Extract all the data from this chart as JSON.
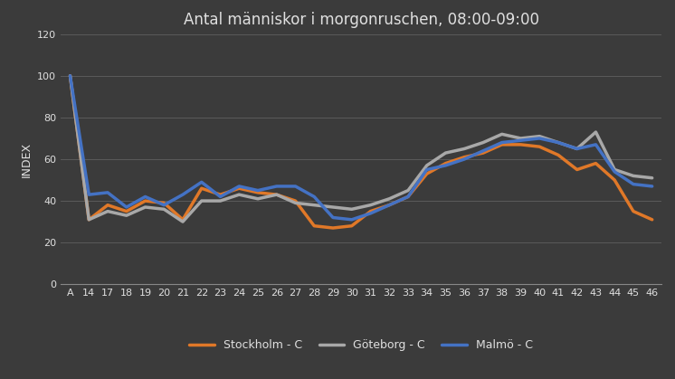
{
  "title": "Antal människor i morgonruschen, 08:00-09:00",
  "ylabel": "INDEX",
  "background_color": "#3b3b3b",
  "plot_bg_color": "#3b3b3b",
  "grid_color": "#606060",
  "text_color": "#e0e0e0",
  "categories": [
    "A",
    "14",
    "17",
    "18",
    "19",
    "20",
    "21",
    "22",
    "23",
    "24",
    "25",
    "26",
    "27",
    "28",
    "29",
    "30",
    "31",
    "32",
    "33",
    "34",
    "35",
    "36",
    "37",
    "38",
    "39",
    "40",
    "41",
    "42",
    "43",
    "44",
    "45",
    "46"
  ],
  "stockholm": [
    100,
    31,
    38,
    35,
    40,
    39,
    31,
    46,
    43,
    46,
    44,
    43,
    40,
    28,
    27,
    28,
    35,
    38,
    42,
    53,
    58,
    61,
    63,
    67,
    67,
    66,
    62,
    55,
    58,
    50,
    35,
    31
  ],
  "goteborg": [
    100,
    31,
    35,
    33,
    37,
    36,
    30,
    40,
    40,
    43,
    41,
    43,
    39,
    38,
    37,
    36,
    38,
    41,
    45,
    57,
    63,
    65,
    68,
    72,
    70,
    71,
    68,
    65,
    73,
    55,
    52,
    51
  ],
  "malmo": [
    100,
    43,
    44,
    37,
    42,
    38,
    43,
    49,
    42,
    47,
    45,
    47,
    47,
    42,
    32,
    31,
    34,
    38,
    42,
    55,
    57,
    60,
    64,
    68,
    69,
    70,
    68,
    65,
    67,
    54,
    48,
    47
  ],
  "stockholm_color": "#e07828",
  "goteborg_color": "#a8a8a8",
  "malmo_color": "#4472c4",
  "ylim": [
    0,
    120
  ],
  "yticks": [
    0,
    20,
    40,
    60,
    80,
    100,
    120
  ],
  "legend_labels": [
    "Stockholm - C",
    "Göteborg - C",
    "Malmö - C"
  ],
  "line_width": 2.5,
  "title_fontsize": 12,
  "tick_fontsize": 8,
  "ylabel_fontsize": 9
}
